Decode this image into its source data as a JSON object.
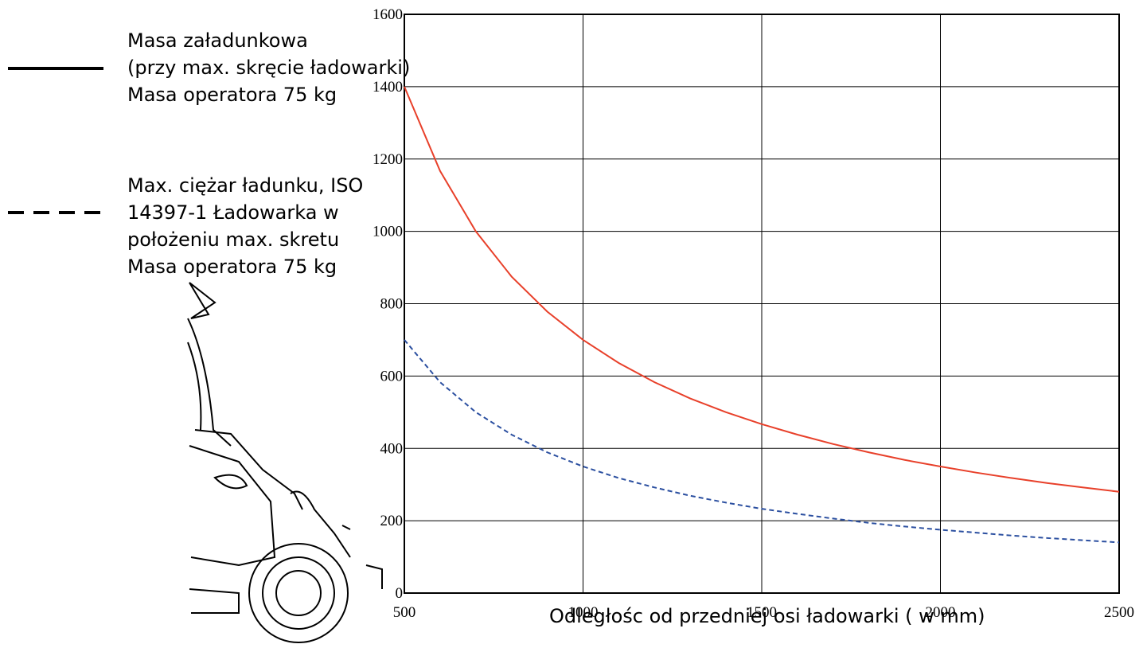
{
  "chart_data": {
    "type": "line",
    "x_label": "Odległośc od przedniej osi ładowarki ( w mm)",
    "x": [
      500,
      600,
      700,
      800,
      900,
      1000,
      1100,
      1200,
      1300,
      1400,
      1500,
      1600,
      1700,
      1800,
      1900,
      2000,
      2100,
      2200,
      2300,
      2400,
      2500
    ],
    "series": [
      {
        "name": "Masa załadunkowa\n(przy max. skręcie ładowarki)\nMasa operatora 75 kg",
        "color": "#e8402a",
        "line_style": "solid",
        "values": [
          1400,
          1167,
          1000,
          875,
          778,
          700,
          636,
          583,
          538,
          500,
          467,
          438,
          412,
          389,
          368,
          350,
          333,
          318,
          304,
          292,
          280
        ]
      },
      {
        "name": "Max. ciężar ładunku, ISO\n14397-1 Ładowarka w\npołożeniu max. skretu\nMasa operatora 75 kg",
        "color": "#2b4fa0",
        "line_style": "dashed",
        "values": [
          700,
          583,
          500,
          438,
          389,
          350,
          318,
          292,
          269,
          250,
          233,
          219,
          206,
          194,
          184,
          175,
          167,
          159,
          152,
          146,
          140
        ]
      }
    ],
    "xlim": [
      500,
      2500
    ],
    "xticks": [
      500,
      1000,
      1500,
      2000,
      2500
    ],
    "ylim": [
      0,
      1600
    ],
    "yticks": [
      0,
      200,
      400,
      600,
      800,
      1000,
      1200,
      1400,
      1600
    ],
    "grid": true
  }
}
